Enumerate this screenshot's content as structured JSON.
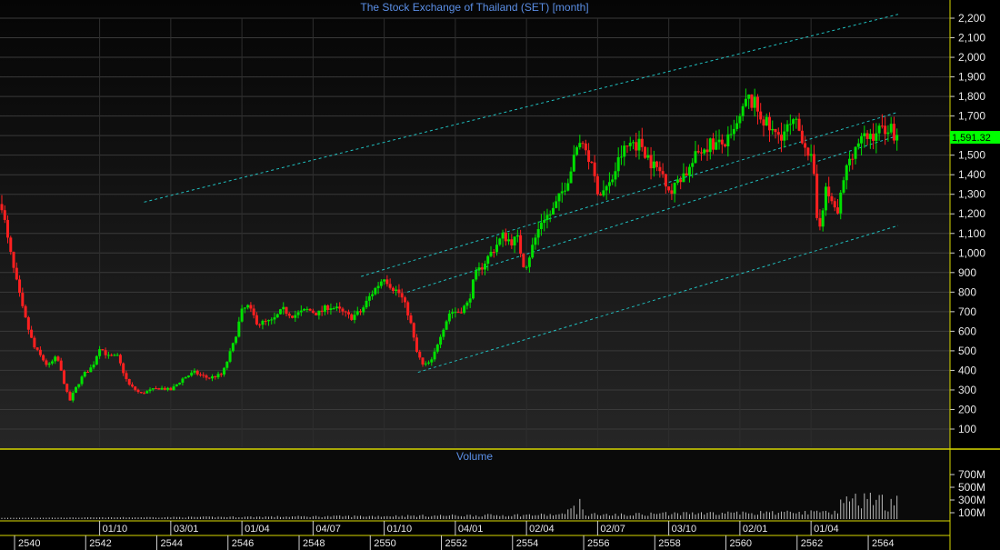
{
  "colors": {
    "background": "#000000",
    "panel": "#1e1e1e",
    "up_candle": "#00e000",
    "down_candle": "#ff2020",
    "channel": "#20c0c0",
    "separator": "#d8d800",
    "title": "#5b8fe6",
    "volume_bar": "#bdbdbd",
    "last_tag": "#00ff00"
  },
  "chart_data": {
    "type": "candlestick",
    "title": "The Stock Exchange of Thailand (SET) [month]",
    "volume_title": "Volume",
    "ylim": [
      0,
      2250
    ],
    "yticks": [
      "100",
      "200",
      "300",
      "400",
      "500",
      "600",
      "700",
      "800",
      "900",
      "1,000",
      "1,100",
      "1,200",
      "1,300",
      "1,400",
      "1,500",
      "1,600",
      "1,700",
      "1,800",
      "1,900",
      "2,000",
      "2,100",
      "2,200"
    ],
    "volume_ticks": [
      "100M",
      "300M",
      "500M",
      "700M"
    ],
    "xlim": [
      1997.0,
      2022.2
    ],
    "last_value": 1591.32,
    "last_label": "1,591.32",
    "x_labels_top": [
      {
        "t": 1999.75,
        "label": "01/10"
      },
      {
        "t": 2001.75,
        "label": "03/01"
      },
      {
        "t": 2003.75,
        "label": "01/04"
      },
      {
        "t": 2005.75,
        "label": "04/07"
      },
      {
        "t": 2007.75,
        "label": "01/10"
      },
      {
        "t": 2009.75,
        "label": "04/01"
      },
      {
        "t": 2011.75,
        "label": "02/04"
      },
      {
        "t": 2013.75,
        "label": "02/07"
      },
      {
        "t": 2015.75,
        "label": "03/10"
      },
      {
        "t": 2017.75,
        "label": "02/01"
      },
      {
        "t": 2019.75,
        "label": "01/04"
      }
    ],
    "x_labels_bottom": [
      {
        "t": 1997.0,
        "label": "2540"
      },
      {
        "t": 1999.0,
        "label": "2542"
      },
      {
        "t": 2001.0,
        "label": "2544"
      },
      {
        "t": 2003.0,
        "label": "2546"
      },
      {
        "t": 2005.0,
        "label": "2548"
      },
      {
        "t": 2007.0,
        "label": "2550"
      },
      {
        "t": 2009.0,
        "label": "2552"
      },
      {
        "t": 2011.0,
        "label": "2554"
      },
      {
        "t": 2013.0,
        "label": "2556"
      },
      {
        "t": 2015.0,
        "label": "2558"
      },
      {
        "t": 2017.0,
        "label": "2560"
      },
      {
        "t": 2019.0,
        "label": "2562"
      },
      {
        "t": 2021.0,
        "label": "2564"
      }
    ],
    "anchors": [
      [
        1997.0,
        1250
      ],
      [
        1997.15,
        1080
      ],
      [
        1997.35,
        900
      ],
      [
        1997.6,
        700
      ],
      [
        1997.9,
        520
      ],
      [
        1998.3,
        420
      ],
      [
        1998.55,
        470
      ],
      [
        1998.9,
        240
      ],
      [
        1999.05,
        300
      ],
      [
        1999.3,
        380
      ],
      [
        1999.55,
        420
      ],
      [
        1999.75,
        520
      ],
      [
        2000.0,
        470
      ],
      [
        2000.25,
        470
      ],
      [
        2000.55,
        330
      ],
      [
        2000.9,
        280
      ],
      [
        2001.2,
        300
      ],
      [
        2001.45,
        310
      ],
      [
        2001.75,
        300
      ],
      [
        2002.1,
        360
      ],
      [
        2002.4,
        390
      ],
      [
        2002.8,
        360
      ],
      [
        2003.2,
        380
      ],
      [
        2003.5,
        530
      ],
      [
        2003.75,
        700
      ],
      [
        2003.9,
        730
      ],
      [
        2004.2,
        640
      ],
      [
        2004.6,
        650
      ],
      [
        2004.9,
        710
      ],
      [
        2005.2,
        680
      ],
      [
        2005.6,
        710
      ],
      [
        2005.9,
        690
      ],
      [
        2006.2,
        730
      ],
      [
        2006.45,
        710
      ],
      [
        2006.8,
        670
      ],
      [
        2007.1,
        700
      ],
      [
        2007.35,
        780
      ],
      [
        2007.75,
        880
      ],
      [
        2007.95,
        830
      ],
      [
        2008.2,
        790
      ],
      [
        2008.45,
        680
      ],
      [
        2008.65,
        500
      ],
      [
        2008.85,
        420
      ],
      [
        2009.1,
        450
      ],
      [
        2009.3,
        570
      ],
      [
        2009.6,
        700
      ],
      [
        2009.85,
        700
      ],
      [
        2010.1,
        740
      ],
      [
        2010.3,
        880
      ],
      [
        2010.6,
        960
      ],
      [
        2010.9,
        1040
      ],
      [
        2011.1,
        1090
      ],
      [
        2011.3,
        1060
      ],
      [
        2011.5,
        1070
      ],
      [
        2011.7,
        920
      ],
      [
        2011.95,
        1050
      ],
      [
        2012.2,
        1180
      ],
      [
        2012.45,
        1200
      ],
      [
        2012.7,
        1290
      ],
      [
        2012.95,
        1400
      ],
      [
        2013.25,
        1580
      ],
      [
        2013.45,
        1520
      ],
      [
        2013.6,
        1420
      ],
      [
        2013.8,
        1300
      ],
      [
        2014.1,
        1350
      ],
      [
        2014.4,
        1500
      ],
      [
        2014.7,
        1570
      ],
      [
        2015.0,
        1550
      ],
      [
        2015.3,
        1450
      ],
      [
        2015.6,
        1400
      ],
      [
        2015.85,
        1300
      ],
      [
        2016.0,
        1380
      ],
      [
        2016.3,
        1420
      ],
      [
        2016.6,
        1520
      ],
      [
        2016.9,
        1560
      ],
      [
        2017.2,
        1550
      ],
      [
        2017.5,
        1580
      ],
      [
        2017.8,
        1700
      ],
      [
        2017.95,
        1790
      ],
      [
        2018.15,
        1760
      ],
      [
        2018.35,
        1700
      ],
      [
        2018.55,
        1640
      ],
      [
        2018.75,
        1600
      ],
      [
        2019.0,
        1620
      ],
      [
        2019.3,
        1660
      ],
      [
        2019.55,
        1580
      ],
      [
        2019.8,
        1450
      ],
      [
        2019.95,
        1100
      ],
      [
        2020.15,
        1320
      ],
      [
        2020.35,
        1260
      ],
      [
        2020.5,
        1200
      ],
      [
        2020.65,
        1360
      ],
      [
        2020.85,
        1500
      ],
      [
        2021.1,
        1570
      ],
      [
        2021.35,
        1590
      ],
      [
        2021.6,
        1620
      ],
      [
        2021.9,
        1650
      ],
      [
        2022.2,
        1591
      ]
    ],
    "channel_lines": [
      {
        "t1": 2001.0,
        "v1": 1260,
        "t2": 2022.2,
        "v2": 2220
      },
      {
        "t1": 2007.1,
        "v1": 880,
        "t2": 2022.2,
        "v2": 1720
      },
      {
        "t1": 2008.4,
        "v1": 800,
        "t2": 2022.2,
        "v2": 1600
      },
      {
        "t1": 2008.7,
        "v1": 390,
        "t2": 2022.2,
        "v2": 1140
      }
    ]
  }
}
